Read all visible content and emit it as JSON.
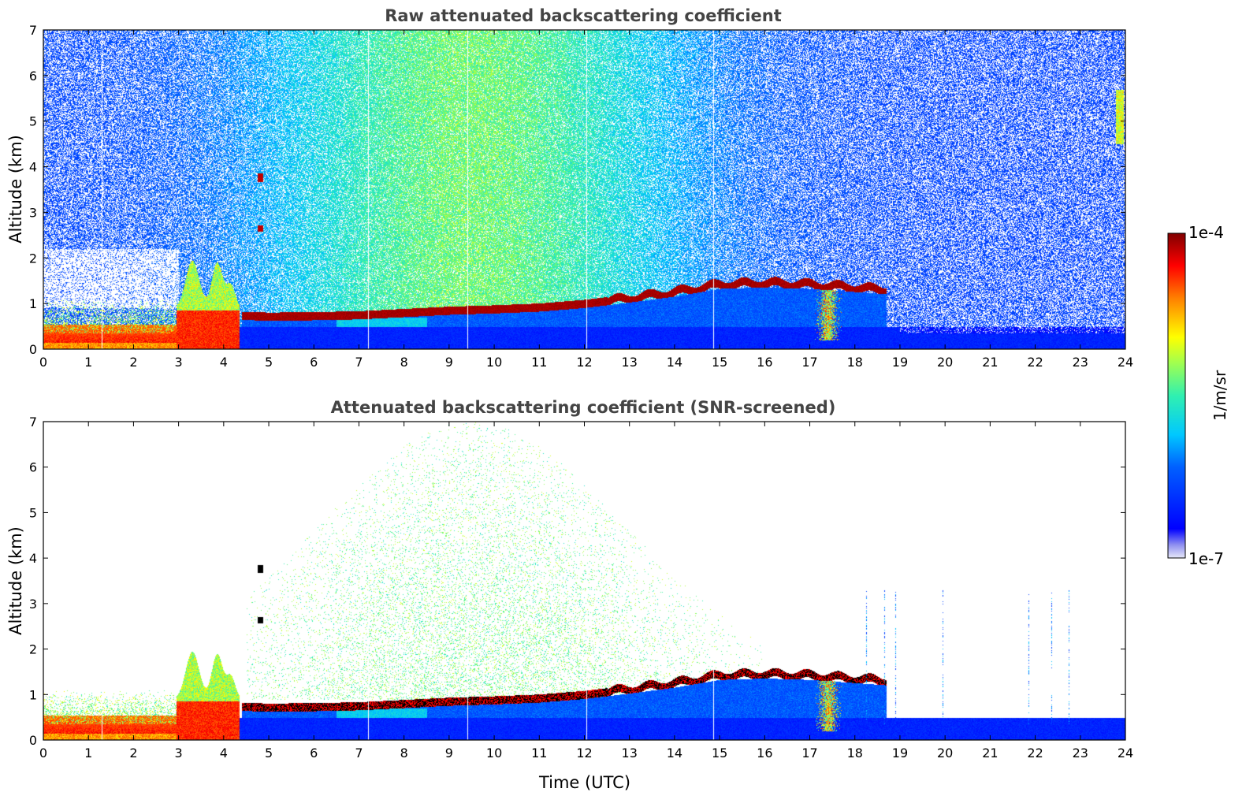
{
  "chart_data": [
    {
      "type": "heatmap",
      "title": "Raw attenuated backscattering coefficient",
      "xlabel": "",
      "ylabel": "Altitude (km)",
      "xlim": [
        0,
        24
      ],
      "ylim": [
        0,
        7
      ],
      "xticks": [
        "0",
        "1",
        "2",
        "3",
        "4",
        "5",
        "6",
        "7",
        "8",
        "9",
        "10",
        "11",
        "12",
        "13",
        "14",
        "15",
        "16",
        "17",
        "18",
        "19",
        "20",
        "21",
        "22",
        "23",
        "24"
      ],
      "yticks": [
        "0",
        "1",
        "2",
        "3",
        "4",
        "5",
        "6",
        "7"
      ],
      "variant": "raw",
      "layer": [
        [
          0,
          0.3
        ],
        [
          1,
          0.28
        ],
        [
          2,
          0.4
        ],
        [
          3,
          0.6
        ],
        [
          4,
          0.75
        ],
        [
          5,
          0.72
        ],
        [
          6,
          0.73
        ],
        [
          7,
          0.75
        ],
        [
          8,
          0.8
        ],
        [
          9,
          0.85
        ],
        [
          10,
          0.88
        ],
        [
          11,
          0.92
        ],
        [
          12,
          1.0
        ],
        [
          13,
          1.12
        ],
        [
          14,
          1.25
        ],
        [
          15,
          1.42
        ],
        [
          16,
          1.45
        ],
        [
          17,
          1.42
        ],
        [
          18,
          1.35
        ],
        [
          18.7,
          1.3
        ]
      ],
      "features": [
        {
          "name": "convective plume",
          "x": [
            3.0,
            4.3
          ],
          "y": [
            0.3,
            2.0
          ]
        },
        {
          "name": "elevated aerosol patch",
          "x": [
            4.75,
            4.85
          ],
          "y": [
            3.7,
            3.85
          ]
        },
        {
          "name": "elevated aerosol patch",
          "x": [
            4.75,
            4.85
          ],
          "y": [
            2.6,
            2.7
          ]
        },
        {
          "name": "high cloud",
          "x": [
            23.8,
            23.95
          ],
          "y": [
            4.6,
            5.6
          ]
        }
      ]
    },
    {
      "type": "heatmap",
      "title": "Attenuated backscattering coefficient (SNR-screened)",
      "xlabel": "Time (UTC)",
      "ylabel": "Altitude (km)",
      "xlim": [
        0,
        24
      ],
      "ylim": [
        0,
        7
      ],
      "xticks": [
        "0",
        "1",
        "2",
        "3",
        "4",
        "5",
        "6",
        "7",
        "8",
        "9",
        "10",
        "11",
        "12",
        "13",
        "14",
        "15",
        "16",
        "17",
        "18",
        "19",
        "20",
        "21",
        "22",
        "23",
        "24"
      ],
      "yticks": [
        "0",
        "1",
        "2",
        "3",
        "4",
        "5",
        "6",
        "7"
      ],
      "variant": "screened",
      "layer": [
        [
          0,
          0.3
        ],
        [
          1,
          0.28
        ],
        [
          2,
          0.4
        ],
        [
          3,
          0.6
        ],
        [
          4,
          0.75
        ],
        [
          5,
          0.72
        ],
        [
          6,
          0.73
        ],
        [
          7,
          0.75
        ],
        [
          8,
          0.8
        ],
        [
          9,
          0.85
        ],
        [
          10,
          0.88
        ],
        [
          11,
          0.92
        ],
        [
          12,
          1.0
        ],
        [
          13,
          1.12
        ],
        [
          14,
          1.25
        ],
        [
          15,
          1.42
        ],
        [
          16,
          1.45
        ],
        [
          17,
          1.42
        ],
        [
          18,
          1.35
        ],
        [
          18.7,
          1.3
        ]
      ]
    }
  ],
  "colorbar": {
    "label": "1/m/sr",
    "max_label": "1e-4",
    "min_label": "1e-7",
    "scale": "log",
    "range": [
      1e-07,
      0.0001
    ]
  }
}
